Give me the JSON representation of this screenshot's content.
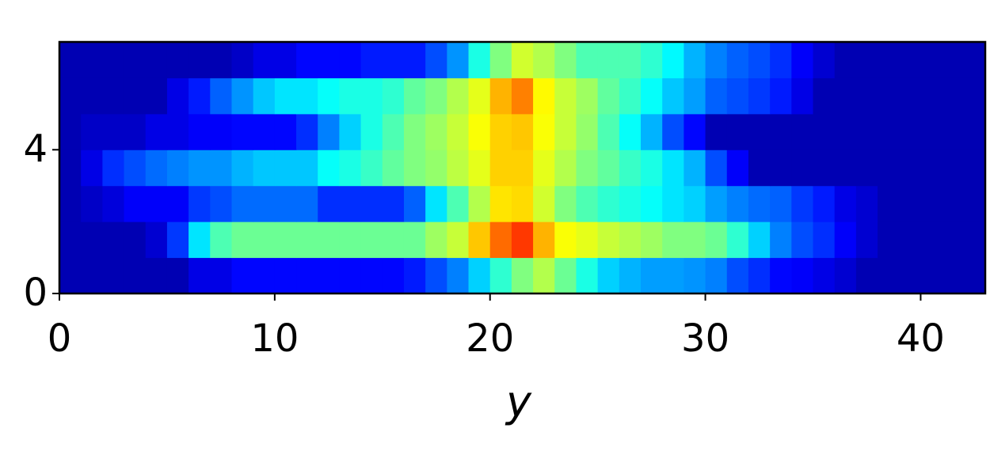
{
  "chart_data": {
    "type": "heatmap",
    "xlabel": "y",
    "colormap": "jet",
    "zlim": [
      0,
      1
    ],
    "xlim": [
      0,
      43
    ],
    "ylim": [
      0,
      7
    ],
    "xticks": [
      0,
      10,
      20,
      30,
      40
    ],
    "yticks": [
      0,
      4
    ],
    "z": [
      [
        0.05,
        0.05,
        0.05,
        0.05,
        0.05,
        0.05,
        0.1,
        0.1,
        0.13,
        0.13,
        0.13,
        0.13,
        0.13,
        0.13,
        0.13,
        0.13,
        0.15,
        0.2,
        0.25,
        0.33,
        0.42,
        0.5,
        0.55,
        0.48,
        0.4,
        0.33,
        0.3,
        0.28,
        0.28,
        0.27,
        0.25,
        0.2,
        0.17,
        0.13,
        0.12,
        0.1,
        0.08,
        0.05,
        0.05,
        0.05,
        0.05,
        0.05,
        0.05
      ],
      [
        0.05,
        0.05,
        0.05,
        0.05,
        0.08,
        0.18,
        0.35,
        0.45,
        0.48,
        0.48,
        0.48,
        0.48,
        0.48,
        0.48,
        0.48,
        0.48,
        0.48,
        0.53,
        0.57,
        0.68,
        0.77,
        0.82,
        0.7,
        0.62,
        0.6,
        0.57,
        0.55,
        0.53,
        0.5,
        0.5,
        0.48,
        0.42,
        0.33,
        0.25,
        0.2,
        0.17,
        0.12,
        0.08,
        0.05,
        0.05,
        0.05,
        0.05,
        0.05
      ],
      [
        0.05,
        0.07,
        0.09,
        0.12,
        0.12,
        0.12,
        0.18,
        0.2,
        0.23,
        0.23,
        0.23,
        0.23,
        0.17,
        0.17,
        0.17,
        0.17,
        0.22,
        0.35,
        0.45,
        0.55,
        0.65,
        0.66,
        0.58,
        0.5,
        0.45,
        0.42,
        0.4,
        0.38,
        0.35,
        0.33,
        0.28,
        0.25,
        0.23,
        0.22,
        0.18,
        0.15,
        0.1,
        0.08,
        0.05,
        0.05,
        0.05,
        0.05,
        0.05
      ],
      [
        0.05,
        0.1,
        0.17,
        0.2,
        0.23,
        0.25,
        0.27,
        0.27,
        0.3,
        0.32,
        0.32,
        0.32,
        0.38,
        0.4,
        0.43,
        0.47,
        0.5,
        0.52,
        0.56,
        0.6,
        0.67,
        0.67,
        0.6,
        0.55,
        0.5,
        0.47,
        0.43,
        0.4,
        0.35,
        0.3,
        0.2,
        0.12,
        0.05,
        0.05,
        0.05,
        0.05,
        0.05,
        0.05,
        0.05,
        0.05,
        0.05,
        0.05,
        0.05
      ],
      [
        0.05,
        0.07,
        0.07,
        0.07,
        0.1,
        0.1,
        0.12,
        0.12,
        0.13,
        0.13,
        0.13,
        0.17,
        0.25,
        0.33,
        0.4,
        0.45,
        0.5,
        0.53,
        0.57,
        0.62,
        0.67,
        0.68,
        0.62,
        0.57,
        0.52,
        0.45,
        0.38,
        0.3,
        0.2,
        0.13,
        0.05,
        0.05,
        0.05,
        0.05,
        0.05,
        0.05,
        0.05,
        0.05,
        0.05,
        0.05,
        0.05,
        0.05,
        0.05
      ],
      [
        0.05,
        0.05,
        0.05,
        0.05,
        0.05,
        0.1,
        0.15,
        0.22,
        0.27,
        0.32,
        0.35,
        0.35,
        0.38,
        0.4,
        0.4,
        0.42,
        0.47,
        0.5,
        0.55,
        0.6,
        0.7,
        0.75,
        0.63,
        0.57,
        0.53,
        0.47,
        0.43,
        0.38,
        0.32,
        0.28,
        0.22,
        0.2,
        0.18,
        0.15,
        0.1,
        0.05,
        0.05,
        0.05,
        0.05,
        0.05,
        0.05,
        0.05,
        0.05
      ],
      [
        0.05,
        0.05,
        0.05,
        0.05,
        0.05,
        0.05,
        0.05,
        0.05,
        0.07,
        0.1,
        0.1,
        0.13,
        0.13,
        0.13,
        0.15,
        0.15,
        0.15,
        0.2,
        0.27,
        0.4,
        0.5,
        0.58,
        0.55,
        0.5,
        0.45,
        0.45,
        0.45,
        0.42,
        0.37,
        0.3,
        0.25,
        0.22,
        0.2,
        0.17,
        0.12,
        0.08,
        0.05,
        0.05,
        0.05,
        0.05,
        0.05,
        0.05,
        0.05
      ]
    ]
  }
}
